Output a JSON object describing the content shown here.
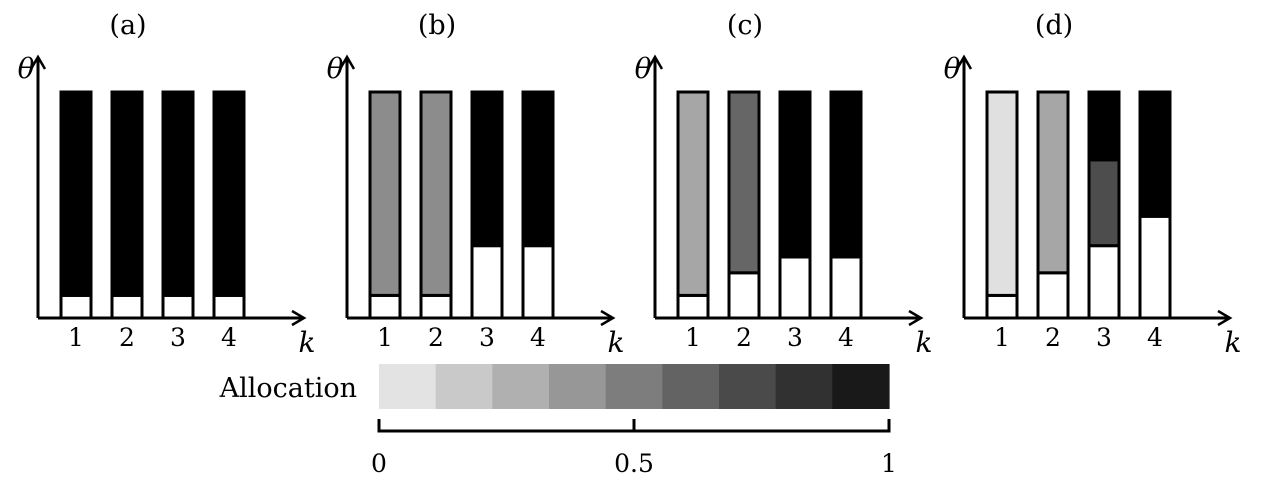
{
  "panels": [
    {
      "label": "(a)",
      "y_axis_label": "θ",
      "x_axis_label": "k",
      "bars": [
        {
          "k": "1",
          "segments": [
            {
              "from": 0,
              "to": 0.1,
              "allocation": 0
            },
            {
              "from": 0.1,
              "to": 1,
              "allocation": 1
            }
          ]
        },
        {
          "k": "2",
          "segments": [
            {
              "from": 0,
              "to": 0.1,
              "allocation": 0
            },
            {
              "from": 0.1,
              "to": 1,
              "allocation": 1
            }
          ]
        },
        {
          "k": "3",
          "segments": [
            {
              "from": 0,
              "to": 0.1,
              "allocation": 0
            },
            {
              "from": 0.1,
              "to": 1,
              "allocation": 1
            }
          ]
        },
        {
          "k": "4",
          "segments": [
            {
              "from": 0,
              "to": 0.1,
              "allocation": 0
            },
            {
              "from": 0.1,
              "to": 1,
              "allocation": 1
            }
          ]
        }
      ]
    },
    {
      "label": "(b)",
      "y_axis_label": "θ",
      "x_axis_label": "k",
      "bars": [
        {
          "k": "1",
          "segments": [
            {
              "from": 0,
              "to": 0.1,
              "allocation": 0
            },
            {
              "from": 0.1,
              "to": 1,
              "allocation": 0.45
            }
          ]
        },
        {
          "k": "2",
          "segments": [
            {
              "from": 0,
              "to": 0.1,
              "allocation": 0
            },
            {
              "from": 0.1,
              "to": 1,
              "allocation": 0.45
            }
          ]
        },
        {
          "k": "3",
          "segments": [
            {
              "from": 0,
              "to": 0.32,
              "allocation": 0
            },
            {
              "from": 0.32,
              "to": 1,
              "allocation": 1
            }
          ]
        },
        {
          "k": "4",
          "segments": [
            {
              "from": 0,
              "to": 0.32,
              "allocation": 0
            },
            {
              "from": 0.32,
              "to": 1,
              "allocation": 1
            }
          ]
        }
      ]
    },
    {
      "label": "(c)",
      "y_axis_label": "θ",
      "x_axis_label": "k",
      "bars": [
        {
          "k": "1",
          "segments": [
            {
              "from": 0,
              "to": 0.1,
              "allocation": 0
            },
            {
              "from": 0.1,
              "to": 1,
              "allocation": 0.35
            }
          ]
        },
        {
          "k": "2",
          "segments": [
            {
              "from": 0,
              "to": 0.2,
              "allocation": 0
            },
            {
              "from": 0.2,
              "to": 1,
              "allocation": 0.6
            }
          ]
        },
        {
          "k": "3",
          "segments": [
            {
              "from": 0,
              "to": 0.27,
              "allocation": 0
            },
            {
              "from": 0.27,
              "to": 1,
              "allocation": 1
            }
          ]
        },
        {
          "k": "4",
          "segments": [
            {
              "from": 0,
              "to": 0.27,
              "allocation": 0
            },
            {
              "from": 0.27,
              "to": 1,
              "allocation": 1
            }
          ]
        }
      ]
    },
    {
      "label": "(d)",
      "y_axis_label": "θ",
      "x_axis_label": "k",
      "bars": [
        {
          "k": "1",
          "segments": [
            {
              "from": 0,
              "to": 0.1,
              "allocation": 0
            },
            {
              "from": 0.1,
              "to": 1,
              "allocation": 0.12
            }
          ]
        },
        {
          "k": "2",
          "segments": [
            {
              "from": 0,
              "to": 0.2,
              "allocation": 0
            },
            {
              "from": 0.2,
              "to": 1,
              "allocation": 0.35
            }
          ]
        },
        {
          "k": "3",
          "segments": [
            {
              "from": 0,
              "to": 0.32,
              "allocation": 0
            },
            {
              "from": 0.32,
              "to": 0.7,
              "allocation": 0.7
            },
            {
              "from": 0.7,
              "to": 1,
              "allocation": 1
            }
          ]
        },
        {
          "k": "4",
          "segments": [
            {
              "from": 0,
              "to": 0.45,
              "allocation": 0
            },
            {
              "from": 0.45,
              "to": 1,
              "allocation": 1
            }
          ]
        }
      ]
    }
  ],
  "colorbar": {
    "label": "Allocation",
    "colors": [
      "#e3e3e3",
      "#c9c9c9",
      "#b0b0b0",
      "#979797",
      "#7d7d7d",
      "#636363",
      "#4a4a4a",
      "#313131",
      "#191919"
    ],
    "ticks": [
      "0",
      "0.5",
      "1"
    ]
  }
}
